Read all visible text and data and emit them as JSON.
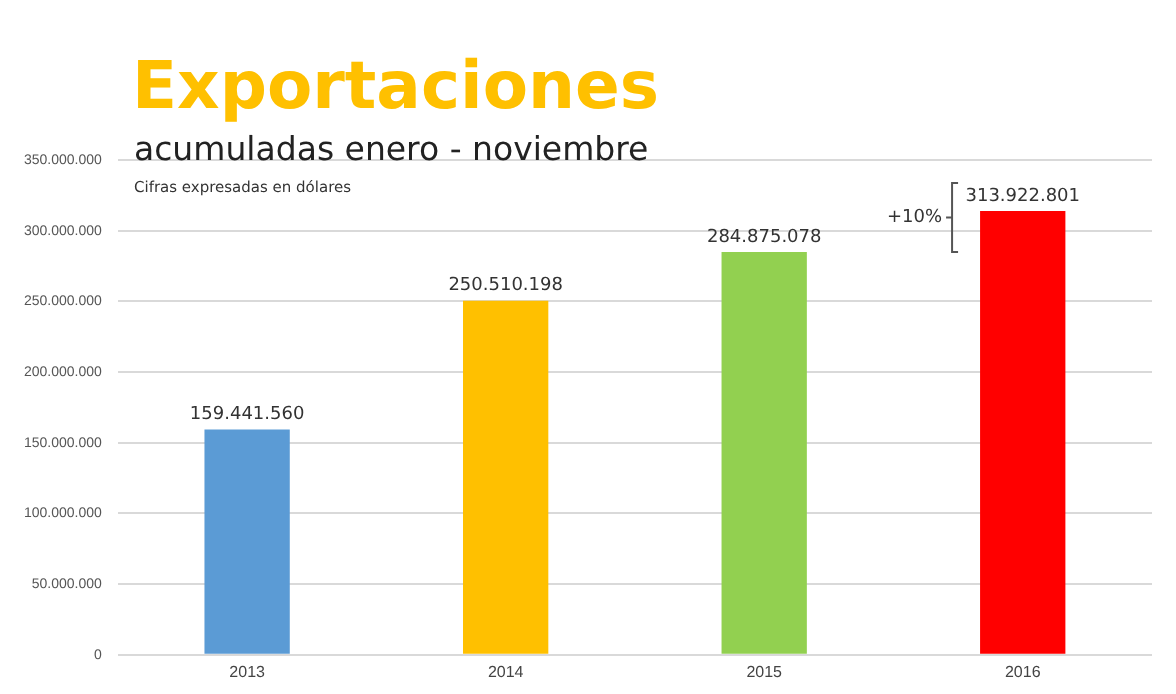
{
  "chart_data": {
    "type": "bar",
    "title": "Exportaciones",
    "subtitle": "acumuladas enero - noviembre",
    "annotations": [
      "Cifras expresadas en dólares",
      "+10%"
    ],
    "categories": [
      "2013",
      "2014",
      "2015",
      "2016"
    ],
    "values": [
      159441560,
      250510198,
      284875078,
      313922801
    ],
    "colors": [
      "#5b9bd5",
      "#ffc000",
      "#92d050",
      "#ff0000"
    ],
    "value_labels": [
      "159.441.560",
      "250.510.198",
      "284.875.078",
      "313.922.801"
    ],
    "ylim": [
      0,
      350000000
    ],
    "yticks": [
      {
        "value": 0,
        "label": "0"
      },
      {
        "value": 50000000,
        "label": "50.000.000"
      },
      {
        "value": 100000000,
        "label": "100.000.000"
      },
      {
        "value": 150000000,
        "label": "150.000.000"
      },
      {
        "value": 200000000,
        "label": "200.000.000"
      },
      {
        "value": 250000000,
        "label": "250.000.000"
      },
      {
        "value": 300000000,
        "label": "300.000.000"
      },
      {
        "value": 350000000,
        "label": "350.000.000"
      }
    ],
    "grid": "y"
  }
}
